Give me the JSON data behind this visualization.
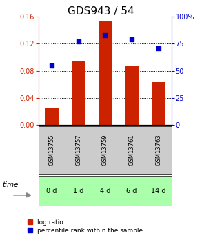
{
  "title": "GDS943 / 54",
  "samples": [
    "GSM13755",
    "GSM13757",
    "GSM13759",
    "GSM13761",
    "GSM13763"
  ],
  "time_labels": [
    "0 d",
    "1 d",
    "4 d",
    "6 d",
    "14 d"
  ],
  "log_ratio": [
    0.025,
    0.095,
    0.153,
    0.088,
    0.063
  ],
  "percentile_rank": [
    55,
    77,
    83,
    79,
    71
  ],
  "bar_color": "#cc2200",
  "dot_color": "#0000cc",
  "left_ylim": [
    0,
    0.16
  ],
  "right_ylim": [
    0,
    100
  ],
  "left_yticks": [
    0,
    0.04,
    0.08,
    0.12,
    0.16
  ],
  "right_yticks": [
    0,
    25,
    50,
    75,
    100
  ],
  "right_yticklabels": [
    "0",
    "25",
    "50",
    "75",
    "100%"
  ],
  "left_axis_color": "#cc2200",
  "right_axis_color": "#0000cc",
  "grid_color": "#000000",
  "bar_width": 0.5,
  "sample_box_color": "#cccccc",
  "time_box_color": "#aaffaa",
  "time_label": "time",
  "legend_log_ratio": "log ratio",
  "legend_percentile": "percentile rank within the sample",
  "title_fontsize": 11,
  "tick_fontsize": 7,
  "legend_fontsize": 6.5
}
